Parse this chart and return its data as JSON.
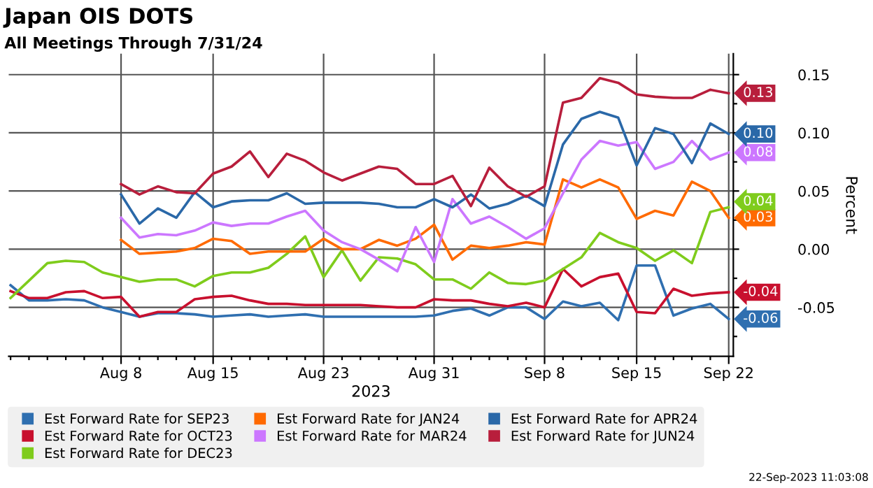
{
  "chart_data": {
    "type": "line",
    "title": "Japan OIS DOTS",
    "subtitle": "All Meetings Through 7/31/24",
    "xlabel": "2023",
    "ylabel": "Percent",
    "categories": [
      null,
      null,
      null,
      null,
      null,
      null,
      "Aug 8",
      null,
      null,
      null,
      null,
      "Aug 15",
      null,
      null,
      null,
      null,
      null,
      "Aug 23",
      null,
      null,
      null,
      null,
      null,
      "Aug 31",
      null,
      null,
      null,
      null,
      null,
      "Sep 8",
      null,
      null,
      null,
      null,
      "Sep 15",
      null,
      null,
      null,
      null,
      "Sep 22"
    ],
    "series": [
      {
        "name": "Est Forward Rate for SEP23",
        "color": "#2f6fb0",
        "values": [
          -0.031,
          -0.044,
          -0.044,
          -0.043,
          -0.044,
          -0.05,
          -0.054,
          -0.058,
          -0.055,
          -0.055,
          -0.056,
          -0.058,
          -0.057,
          -0.056,
          -0.058,
          -0.057,
          -0.056,
          -0.058,
          -0.058,
          -0.058,
          -0.058,
          -0.058,
          -0.058,
          -0.057,
          -0.053,
          -0.051,
          -0.057,
          -0.05,
          -0.05,
          -0.06,
          -0.045,
          -0.049,
          -0.046,
          -0.061,
          -0.014,
          -0.014,
          -0.057,
          -0.051,
          -0.047,
          -0.06
        ],
        "value_labels": [
          null,
          null,
          null,
          null,
          null,
          null,
          null,
          null,
          null,
          null,
          null,
          null,
          null,
          null,
          null,
          null,
          null,
          null,
          null,
          null,
          null,
          null,
          null,
          null,
          null,
          null,
          null,
          null,
          null,
          null,
          null,
          null,
          null,
          null,
          null,
          null,
          null,
          null,
          null,
          "-0.06"
        ]
      },
      {
        "name": "Est Forward Rate for OCT23",
        "color": "#c8102e",
        "values": [
          -0.036,
          -0.042,
          -0.042,
          -0.037,
          -0.036,
          -0.042,
          -0.041,
          -0.058,
          -0.054,
          -0.054,
          -0.043,
          -0.041,
          -0.04,
          -0.044,
          -0.047,
          -0.047,
          -0.048,
          -0.048,
          -0.048,
          -0.048,
          -0.049,
          -0.05,
          -0.05,
          -0.043,
          -0.044,
          -0.044,
          -0.047,
          -0.049,
          -0.046,
          -0.05,
          -0.017,
          -0.032,
          -0.024,
          -0.021,
          -0.054,
          -0.055,
          -0.034,
          -0.04,
          -0.038,
          -0.037
        ],
        "value_labels": [
          null,
          null,
          null,
          null,
          null,
          null,
          null,
          null,
          null,
          null,
          null,
          null,
          null,
          null,
          null,
          null,
          null,
          null,
          null,
          null,
          null,
          null,
          null,
          null,
          null,
          null,
          null,
          null,
          null,
          null,
          null,
          null,
          null,
          null,
          null,
          null,
          null,
          null,
          null,
          "-0.04"
        ]
      },
      {
        "name": "Est Forward Rate for DEC23",
        "color": "#7fcc1c",
        "values": [
          -0.042,
          -0.027,
          -0.012,
          -0.01,
          -0.011,
          -0.02,
          -0.024,
          -0.028,
          -0.026,
          -0.026,
          -0.032,
          -0.023,
          -0.02,
          -0.02,
          -0.016,
          -0.004,
          0.011,
          -0.024,
          -0.001,
          -0.027,
          -0.007,
          -0.008,
          -0.013,
          -0.026,
          -0.026,
          -0.034,
          -0.02,
          -0.029,
          -0.03,
          -0.027,
          -0.017,
          -0.007,
          0.014,
          0.006,
          0.001,
          -0.01,
          -0.001,
          -0.012,
          0.032,
          0.036
        ],
        "value_labels": [
          null,
          null,
          null,
          null,
          null,
          null,
          null,
          null,
          null,
          null,
          null,
          null,
          null,
          null,
          null,
          null,
          null,
          null,
          null,
          null,
          null,
          null,
          null,
          null,
          null,
          null,
          null,
          null,
          null,
          null,
          null,
          null,
          null,
          null,
          null,
          null,
          null,
          null,
          null,
          "0.04"
        ]
      },
      {
        "name": "Est Forward Rate for JAN24",
        "color": "#ff6a00",
        "values": [
          null,
          null,
          null,
          null,
          null,
          null,
          0.008,
          -0.004,
          -0.003,
          -0.002,
          0.001,
          0.009,
          0.007,
          -0.004,
          -0.002,
          -0.002,
          -0.002,
          0.009,
          0.0,
          0.0,
          0.008,
          0.003,
          0.009,
          0.021,
          -0.009,
          0.003,
          0.001,
          0.003,
          0.006,
          0.004,
          0.06,
          0.053,
          0.06,
          0.053,
          0.026,
          0.033,
          0.029,
          0.058,
          0.05,
          0.027
        ],
        "value_labels": [
          null,
          null,
          null,
          null,
          null,
          null,
          null,
          null,
          null,
          null,
          null,
          null,
          null,
          null,
          null,
          null,
          null,
          null,
          null,
          null,
          null,
          null,
          null,
          null,
          null,
          null,
          null,
          null,
          null,
          null,
          null,
          null,
          null,
          null,
          null,
          null,
          null,
          null,
          null,
          "0.03"
        ]
      },
      {
        "name": "Est Forward Rate for MAR24",
        "color": "#cc77ff",
        "values": [
          null,
          null,
          null,
          null,
          null,
          null,
          0.027,
          0.01,
          0.013,
          0.012,
          0.016,
          0.023,
          0.02,
          0.022,
          0.022,
          0.028,
          0.033,
          0.016,
          0.006,
          0.0,
          -0.009,
          -0.019,
          0.019,
          -0.011,
          0.043,
          0.022,
          0.028,
          0.019,
          0.009,
          0.018,
          0.048,
          0.077,
          0.093,
          0.089,
          0.092,
          0.069,
          0.075,
          0.093,
          0.077,
          0.083
        ],
        "value_labels": [
          null,
          null,
          null,
          null,
          null,
          null,
          null,
          null,
          null,
          null,
          null,
          null,
          null,
          null,
          null,
          null,
          null,
          null,
          null,
          null,
          null,
          null,
          null,
          null,
          null,
          null,
          null,
          null,
          null,
          null,
          null,
          null,
          null,
          null,
          null,
          null,
          null,
          null,
          null,
          "0.08"
        ]
      },
      {
        "name": "Est Forward Rate for APR24",
        "color": "#2a68a8",
        "values": [
          null,
          null,
          null,
          null,
          null,
          null,
          0.047,
          0.022,
          0.035,
          0.027,
          0.049,
          0.036,
          0.041,
          0.042,
          0.042,
          0.048,
          0.039,
          0.04,
          0.04,
          0.04,
          0.039,
          0.036,
          0.036,
          0.043,
          0.036,
          0.047,
          0.035,
          0.039,
          0.046,
          0.037,
          0.09,
          0.112,
          0.118,
          0.113,
          0.072,
          0.104,
          0.099,
          0.074,
          0.108,
          0.099
        ],
        "value_labels": [
          null,
          null,
          null,
          null,
          null,
          null,
          null,
          null,
          null,
          null,
          null,
          null,
          null,
          null,
          null,
          null,
          null,
          null,
          null,
          null,
          null,
          null,
          null,
          null,
          null,
          null,
          null,
          null,
          null,
          null,
          null,
          null,
          null,
          null,
          null,
          null,
          null,
          null,
          null,
          "0.10"
        ]
      },
      {
        "name": "Est Forward Rate for JUN24",
        "color": "#b81e3c",
        "values": [
          null,
          null,
          null,
          null,
          null,
          null,
          0.056,
          0.047,
          0.054,
          0.049,
          0.048,
          0.065,
          0.071,
          0.084,
          0.062,
          0.082,
          0.076,
          0.066,
          0.059,
          0.065,
          0.071,
          0.069,
          0.056,
          0.056,
          0.063,
          0.037,
          0.07,
          0.054,
          0.045,
          0.054,
          0.126,
          0.13,
          0.147,
          0.143,
          0.133,
          0.131,
          0.13,
          0.13,
          0.137,
          0.134
        ],
        "value_labels": [
          null,
          null,
          null,
          null,
          null,
          null,
          null,
          null,
          null,
          null,
          null,
          null,
          null,
          null,
          null,
          null,
          null,
          null,
          null,
          null,
          null,
          null,
          null,
          null,
          null,
          null,
          null,
          null,
          null,
          null,
          null,
          null,
          null,
          null,
          null,
          null,
          null,
          null,
          null,
          "0.13"
        ]
      }
    ],
    "ylim": [
      -0.092,
      0.168
    ],
    "yticks": [
      {
        "value": -0.075,
        "label": null
      },
      {
        "value": -0.05,
        "label": "-0.05"
      },
      {
        "value": -0.025,
        "label": null
      },
      {
        "value": 0.0,
        "label": "0.00"
      },
      {
        "value": 0.025,
        "label": null
      },
      0.05,
      {
        "value": 0.075,
        "label": null
      },
      {
        "value": 0.1,
        "label": "0.10"
      },
      {
        "value": 0.125,
        "label": null
      },
      0.15
    ],
    "grid": true,
    "legend": "bottom",
    "annotations": [
      "22-Sep-2023 11:03:08"
    ]
  }
}
